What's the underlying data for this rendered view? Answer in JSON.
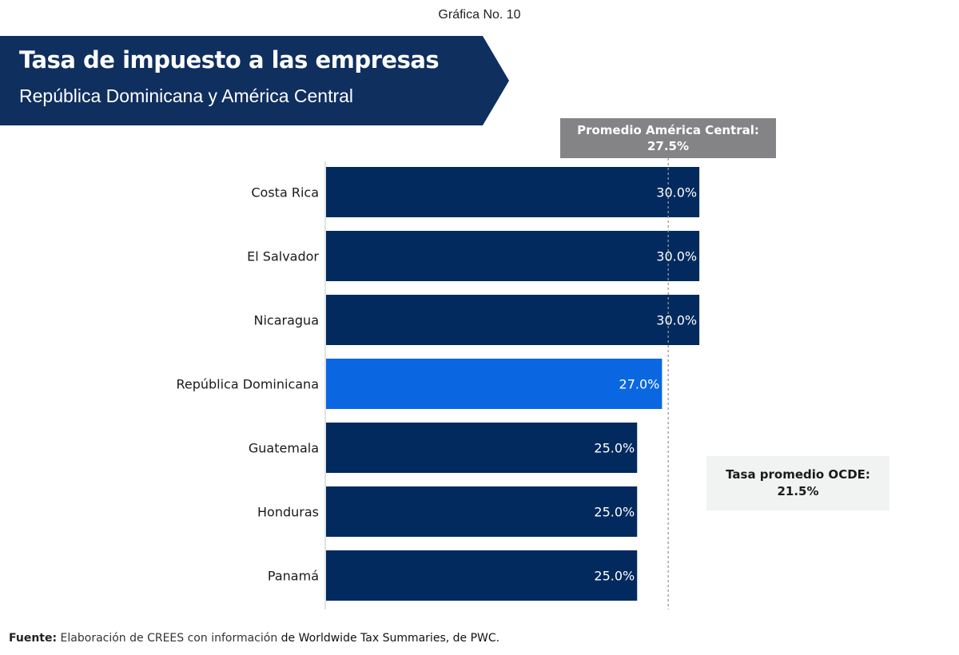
{
  "figure_number": "Gráfica No. 10",
  "banner": {
    "title": "Tasa de impuesto a las empresas",
    "subtitle": "República Dominicana y América Central"
  },
  "colors": {
    "banner": "#0F2F5F",
    "bar_default": "#032A5E",
    "bar_highlight": "#0A67E1",
    "note_central_america_bg": "#848487",
    "note_ocde_bg": "#F1F2F2",
    "reference_line": "#999999"
  },
  "notes": {
    "central_america_label": "Promedio América Central:",
    "central_america_value": "27.5%",
    "ocde_label": "Tasa promedio OCDE:",
    "ocde_value": "21.5%"
  },
  "source": {
    "label": "Fuente:",
    "text": "Elaboración de CREES con información",
    "text_emphasis": "de Worldwide Tax Summaries, de PWC."
  },
  "chart_data": {
    "type": "bar",
    "orientation": "horizontal",
    "title": "Tasa de impuesto a las empresas",
    "subtitle": "República Dominicana y América Central",
    "categories": [
      "Costa Rica",
      "El Salvador",
      "Nicaragua",
      "República Dominicana",
      "Guatemala",
      "Honduras",
      "Panamá"
    ],
    "values": [
      30.0,
      30.0,
      30.0,
      27.0,
      25.0,
      25.0,
      25.0
    ],
    "value_labels": [
      "30.0%",
      "30.0%",
      "30.0%",
      "27.0%",
      "25.0%",
      "25.0%",
      "25.0%"
    ],
    "highlight_category": "República Dominicana",
    "unit": "%",
    "xlim": [
      0,
      30
    ],
    "grid": false,
    "reference_lines": [
      {
        "name": "Promedio América Central",
        "value": 27.5,
        "style": "dashed"
      }
    ],
    "annotations": [
      {
        "text": "Promedio América Central: 27.5%"
      },
      {
        "text": "Tasa promedio OCDE: 21.5%"
      }
    ],
    "xlabel": "",
    "ylabel": ""
  }
}
